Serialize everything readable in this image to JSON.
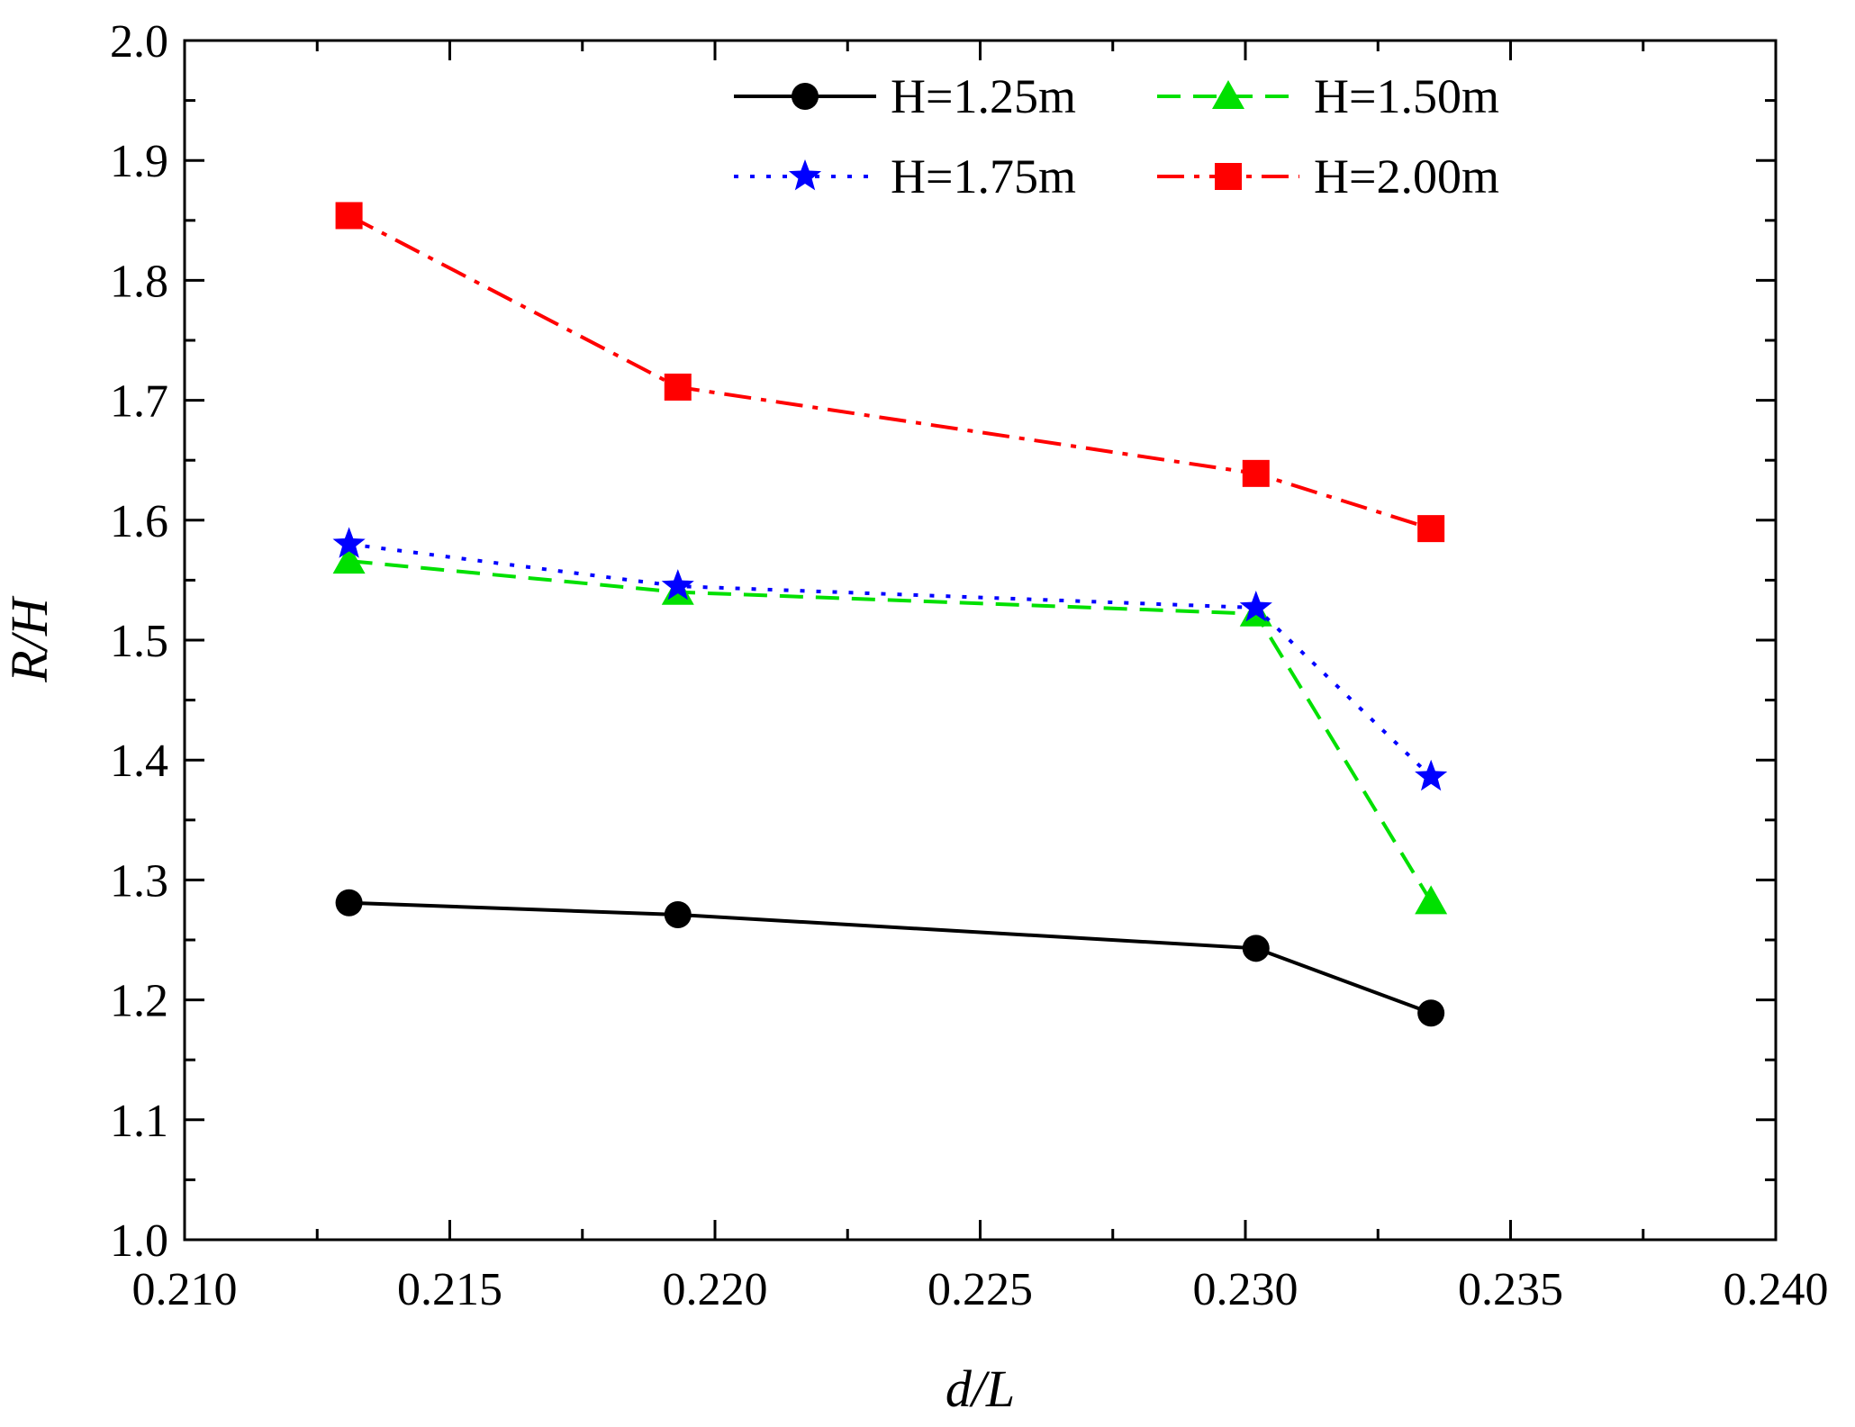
{
  "chart_data": {
    "type": "line",
    "title": "",
    "xlabel": "d/L",
    "ylabel": "R/H",
    "xlim": [
      0.21,
      0.24
    ],
    "ylim": [
      1.0,
      2.0
    ],
    "xticks": [
      "0.210",
      "0.215",
      "0.220",
      "0.225",
      "0.230",
      "0.235",
      "0.240"
    ],
    "yticks": [
      "1.0",
      "1.1",
      "1.2",
      "1.3",
      "1.4",
      "1.5",
      "1.6",
      "1.7",
      "1.8",
      "1.9",
      "2.0"
    ],
    "grid": false,
    "legend_position": "top-right",
    "x": [
      0.2131,
      0.2193,
      0.2302,
      0.2335
    ],
    "series": [
      {
        "name": "H=1.25m",
        "values": [
          1.281,
          1.271,
          1.243,
          1.189
        ],
        "color": "#000000",
        "marker": "circle",
        "line": "solid"
      },
      {
        "name": "H=1.50m",
        "values": [
          1.566,
          1.54,
          1.522,
          1.282
        ],
        "color": "#00e000",
        "marker": "triangle",
        "line": "dashed"
      },
      {
        "name": "H=1.75m",
        "values": [
          1.58,
          1.545,
          1.527,
          1.386
        ],
        "color": "#0000ff",
        "marker": "star",
        "line": "dotted"
      },
      {
        "name": "H=2.00m",
        "values": [
          1.854,
          1.711,
          1.639,
          1.593
        ],
        "color": "#ff0000",
        "marker": "square",
        "line": "dashdot"
      }
    ]
  }
}
